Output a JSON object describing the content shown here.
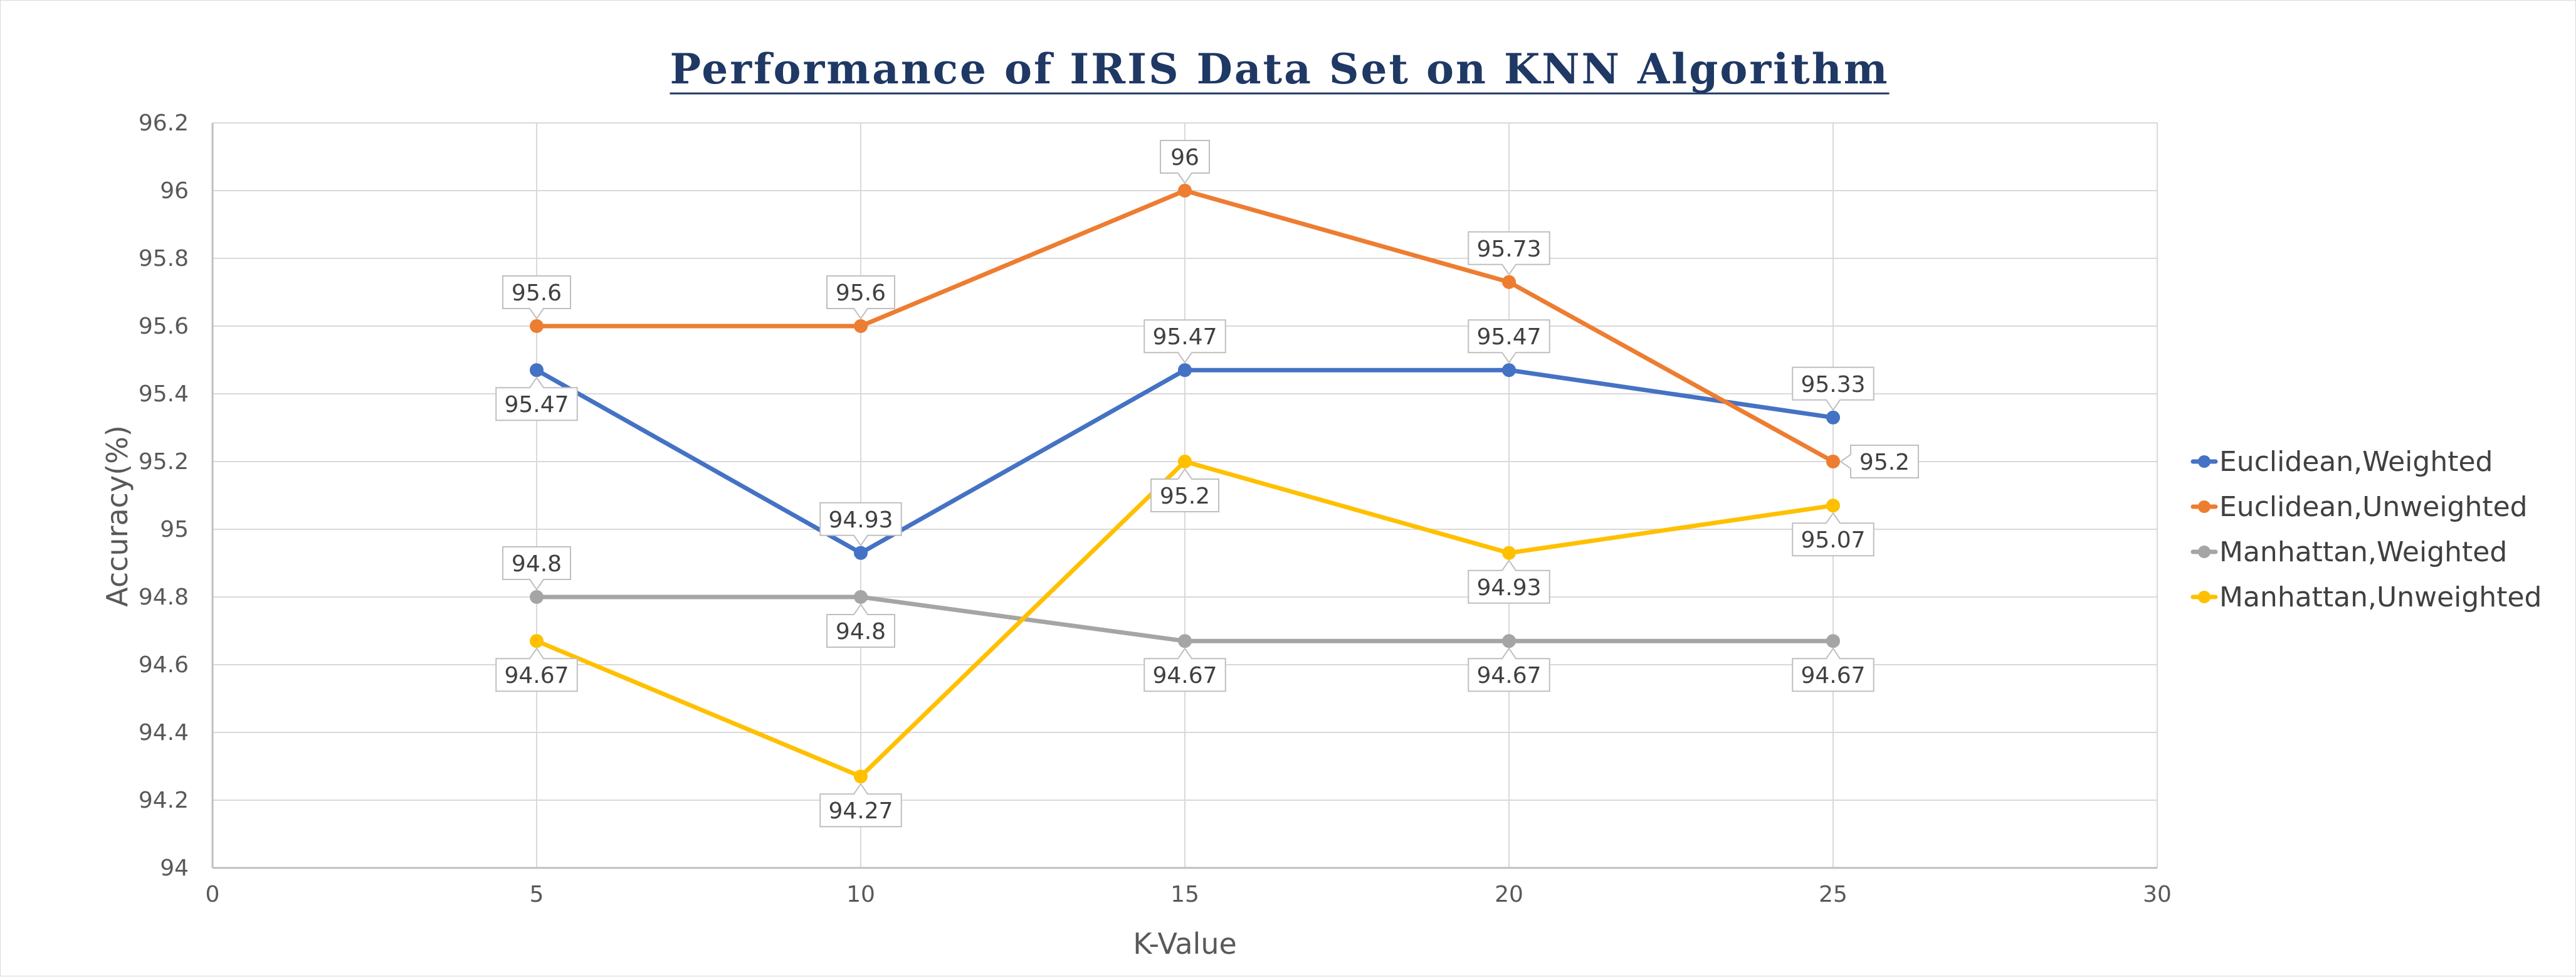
{
  "chart_data": {
    "type": "line",
    "title": "Performance of IRIS Data Set on KNN Algorithm",
    "xlabel": "K-Value",
    "ylabel": "Accuracy(%)",
    "xlim": [
      0,
      30
    ],
    "ylim": [
      94,
      96.2
    ],
    "x_ticks": [
      0,
      5,
      10,
      15,
      20,
      25,
      30
    ],
    "x_tick_labels": [
      "0",
      "5",
      "10",
      "15",
      "20",
      "25",
      "30"
    ],
    "y_ticks": [
      94,
      94.2,
      94.4,
      94.6,
      94.8,
      95,
      95.2,
      95.4,
      95.6,
      95.8,
      96,
      96.2
    ],
    "y_tick_labels": [
      "94",
      "94.2",
      "94.4",
      "94.6",
      "94.8",
      "95",
      "95.2",
      "95.4",
      "95.6",
      "95.8",
      "96",
      "96.2"
    ],
    "grid": true,
    "legend_position": "right",
    "x": [
      5,
      10,
      15,
      20,
      25
    ],
    "series": [
      {
        "name": "Euclidean,Weighted",
        "color": "#4472c4",
        "values": [
          95.47,
          94.93,
          95.47,
          95.47,
          95.33
        ],
        "data_labels": [
          "95.47",
          "94.93",
          "95.47",
          "95.47",
          "95.33"
        ],
        "label_positions": [
          "below",
          "above",
          "above",
          "above",
          "above"
        ]
      },
      {
        "name": "Euclidean,Unweighted",
        "color": "#ed7d31",
        "values": [
          95.6,
          95.6,
          96,
          95.73,
          95.2
        ],
        "data_labels": [
          "95.6",
          "95.6",
          "96",
          "95.73",
          "95.2"
        ],
        "label_positions": [
          "above",
          "above",
          "above",
          "above",
          "right"
        ]
      },
      {
        "name": "Manhattan,Weighted",
        "color": "#a5a5a5",
        "values": [
          94.8,
          94.8,
          94.67,
          94.67,
          94.67
        ],
        "data_labels": [
          "94.8",
          "94.8",
          "94.67",
          "94.67",
          "94.67"
        ],
        "label_positions": [
          "above",
          "below",
          "below",
          "below",
          "below"
        ]
      },
      {
        "name": "Manhattan,Unweighted",
        "color": "#ffc000",
        "values": [
          94.67,
          94.27,
          95.2,
          94.93,
          95.07
        ],
        "data_labels": [
          "94.67",
          "94.27",
          "95.2",
          "94.93",
          "95.07"
        ],
        "label_positions": [
          "below",
          "below",
          "below",
          "below",
          "below"
        ]
      }
    ]
  }
}
